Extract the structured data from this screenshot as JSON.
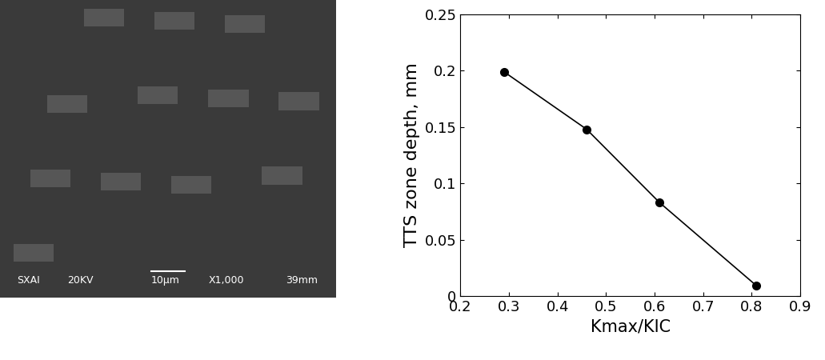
{
  "micrograph": {
    "labels": [
      "SXAI",
      "20KV",
      "10μm",
      "X1,000",
      "39mm"
    ]
  },
  "chart_data": {
    "type": "line",
    "x_label": "Kmax/KIC",
    "y_label": "TTS zone depth, mm",
    "x": [
      0.29,
      0.46,
      0.61,
      0.81
    ],
    "values": [
      0.199,
      0.148,
      0.083,
      0.009
    ],
    "color": "#000000",
    "marker": "circle",
    "line_style": "solid",
    "xlim": [
      0.2,
      0.9
    ],
    "xticks": [
      0.2,
      0.3,
      0.4,
      0.5,
      0.6,
      0.7,
      0.8,
      0.9
    ],
    "ylim": [
      0,
      0.25
    ],
    "yticks": [
      0,
      0.05,
      0.1,
      0.15,
      0.2,
      0.25
    ],
    "grid": false
  }
}
